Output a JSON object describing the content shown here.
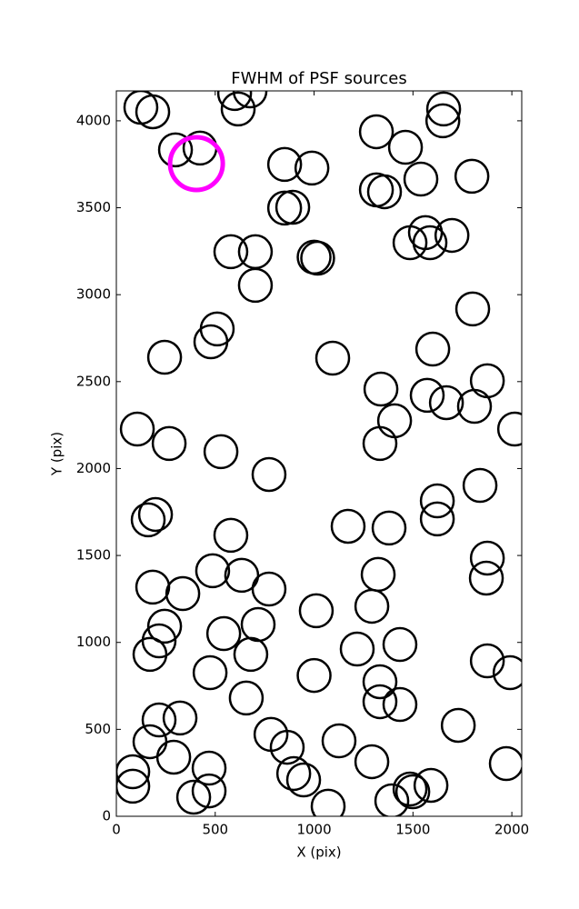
{
  "chart_data": {
    "type": "scatter",
    "title": "FWHM of PSF sources",
    "x_label": "X (pix)",
    "y_label": "Y (pix)",
    "xlim": [
      0,
      2050
    ],
    "ylim": [
      0,
      4172
    ],
    "xticks": [
      0,
      500,
      1000,
      1500,
      2000
    ],
    "yticks": [
      0,
      500,
      1000,
      1500,
      2000,
      2500,
      3000,
      3500,
      4000
    ],
    "series": [
      {
        "color": "#000000",
        "x": [
          124,
          184,
          299,
          423,
          598,
          676,
          616,
          1315,
          1462,
          1655,
          1651,
          851,
          989,
          1798,
          1540,
          1315,
          1356,
          851,
          892,
          1563,
          1485,
          1586,
          1697,
          579,
          703,
          1000,
          1018,
          703,
          1802,
          510,
          478,
          244,
          1094,
          1600,
          1338,
          1876,
          1572,
          1669,
          1811,
          1407,
          1333,
          106,
          267,
          2014,
          529,
          772,
          1839,
          198,
          161,
          1623,
          1623,
          1172,
          1379,
          579,
          1876,
          1871,
          184,
          487,
          634,
          772,
          336,
          1324,
          1292,
          1011,
          244,
          216,
          170,
          543,
          717,
          680,
          1218,
          1434,
          474,
          1000,
          1333,
          1876,
          1991,
          657,
          1333,
          1434,
          1729,
          216,
          322,
          170,
          782,
          864,
          1126,
          290,
          1292,
          1972,
          83,
          83,
          469,
          469,
          391,
          897,
          947,
          1071,
          1393,
          1485,
          1499,
          1591
        ],
        "values": [
          4078,
          4052,
          3833,
          3843,
          4157,
          4172,
          4068,
          3937,
          3848,
          4068,
          4000,
          3749,
          3728,
          3681,
          3665,
          3603,
          3592,
          3498,
          3503,
          3357,
          3299,
          3299,
          3341,
          3247,
          3247,
          3216,
          3210,
          3054,
          2918,
          2803,
          2729,
          2640,
          2635,
          2687,
          2457,
          2505,
          2421,
          2379,
          2358,
          2275,
          2144,
          2227,
          2144,
          2227,
          2097,
          1966,
          1903,
          1736,
          1705,
          1814,
          1710,
          1668,
          1658,
          1616,
          1485,
          1370,
          1318,
          1412,
          1386,
          1307,
          1281,
          1391,
          1208,
          1182,
          1093,
          1009,
          931,
          1051,
          1103,
          931,
          962,
          988,
          826,
          810,
          774,
          894,
          826,
          680,
          659,
          643,
          523,
          554,
          565,
          429,
          471,
          397,
          434,
          340,
          314,
          303,
          256,
          173,
          277,
          146,
          110,
          246,
          209,
          58,
          89,
          157,
          141,
          178
        ]
      },
      {
        "color": "#ff00ff",
        "x": [
          405
        ],
        "values": [
          3754
        ]
      }
    ]
  }
}
